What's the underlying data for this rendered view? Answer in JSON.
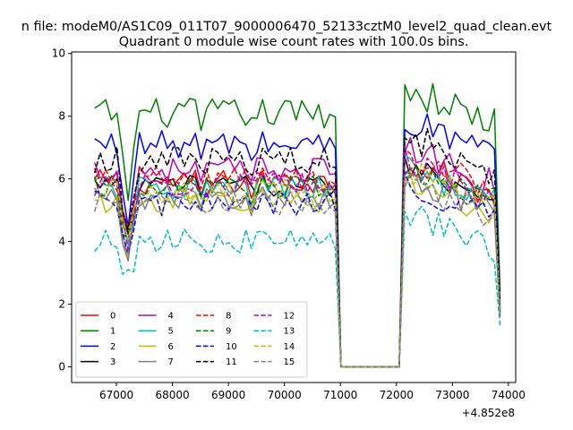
{
  "figure": {
    "suptitle": "n file: modeM0/AS1C09_011T07_9000006470_52133cztM0_level2_quad_clean.evt",
    "offset_label": "+4.852e8"
  },
  "chart_data": {
    "type": "line",
    "title": "Quadrant 0 module wise count rates with 100.0s bins.",
    "xlabel": "",
    "ylabel": "",
    "x_offset": 485200000,
    "xlim": [
      66200,
      74130
    ],
    "ylim": [
      -0.5,
      10.05
    ],
    "x_ticks": [
      67000,
      68000,
      69000,
      70000,
      71000,
      72000,
      73000,
      74000
    ],
    "x_tick_labels": [
      "67000",
      "68000",
      "69000",
      "70000",
      "71000",
      "72000",
      "73000",
      "74000"
    ],
    "y_ticks": [
      0,
      2,
      4,
      6,
      8,
      10
    ],
    "y_tick_labels": [
      "0",
      "2",
      "4",
      "6",
      "8",
      "10"
    ],
    "grid": false,
    "legend": {
      "placement": "lower-left",
      "columns": 4
    },
    "segments": [
      {
        "x_start": 66610,
        "x_end": 70910,
        "step": 100
      },
      {
        "x_start": 72150,
        "x_end": 73850,
        "step": 100
      }
    ],
    "gap": {
      "x_start": 71010,
      "x_end": 72050,
      "value": 0
    },
    "series": [
      {
        "name": "0",
        "color": "#ff0000",
        "dash": "solid",
        "level1": 5.9,
        "level2": 6.6,
        "amp": 0.25
      },
      {
        "name": "1",
        "color": "#008000",
        "dash": "solid",
        "level1": 8.1,
        "level2": 8.9,
        "amp": 0.3
      },
      {
        "name": "2",
        "color": "#0000ff",
        "dash": "solid",
        "level1": 7.1,
        "level2": 7.9,
        "amp": 0.28
      },
      {
        "name": "3",
        "color": "#000000",
        "dash": "solid",
        "level1": 5.8,
        "level2": 6.5,
        "amp": 0.22
      },
      {
        "name": "4",
        "color": "#bf00bf",
        "dash": "solid",
        "level1": 6.3,
        "level2": 7.0,
        "amp": 0.25
      },
      {
        "name": "5",
        "color": "#00bfbf",
        "dash": "solid",
        "level1": 5.7,
        "level2": 6.4,
        "amp": 0.25
      },
      {
        "name": "6",
        "color": "#bfbf00",
        "dash": "solid",
        "level1": 5.3,
        "level2": 6.0,
        "amp": 0.25
      },
      {
        "name": "7",
        "color": "#808080",
        "dash": "solid",
        "level1": 5.4,
        "level2": 6.1,
        "amp": 0.25
      },
      {
        "name": "8",
        "color": "#ff0000",
        "dash": "dashed",
        "level1": 6.0,
        "level2": 6.8,
        "amp": 0.25
      },
      {
        "name": "9",
        "color": "#008000",
        "dash": "dashed",
        "level1": 5.7,
        "level2": 6.4,
        "amp": 0.25
      },
      {
        "name": "10",
        "color": "#0000ff",
        "dash": "dashed",
        "level1": 5.2,
        "level2": 5.9,
        "amp": 0.25
      },
      {
        "name": "11",
        "color": "#000000",
        "dash": "dashed",
        "level1": 6.6,
        "level2": 7.4,
        "amp": 0.28
      },
      {
        "name": "12",
        "color": "#bf00bf",
        "dash": "dashed",
        "level1": 5.8,
        "level2": 6.6,
        "amp": 0.25
      },
      {
        "name": "13",
        "color": "#00bfbf",
        "dash": "dashed",
        "level1": 4.0,
        "level2": 4.9,
        "amp": 0.25
      },
      {
        "name": "14",
        "color": "#bfbf00",
        "dash": "dashed",
        "level1": 5.6,
        "level2": 6.3,
        "amp": 0.25
      },
      {
        "name": "15",
        "color": "#808080",
        "dash": "dashed",
        "level1": 5.2,
        "level2": 5.9,
        "amp": 0.25
      }
    ]
  }
}
